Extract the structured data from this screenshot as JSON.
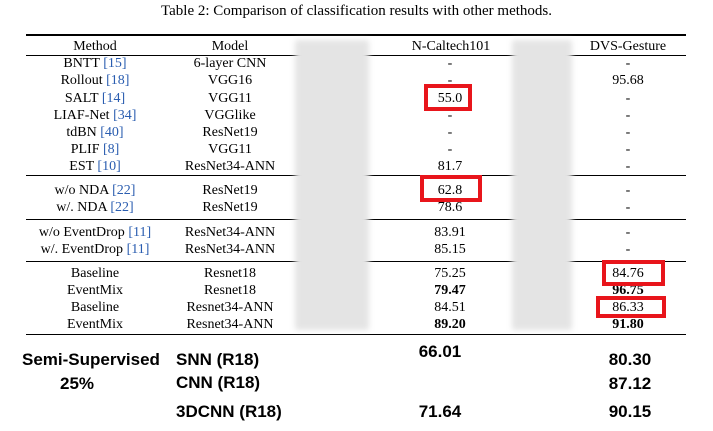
{
  "caption": "Table 2: Comparison of classification results with other methods.",
  "headers": {
    "method": "Method",
    "model": "Model",
    "ncaltech": "N-Caltech101",
    "dvs": "DVS-Gesture"
  },
  "rows": [
    {
      "method": "BNTT ",
      "cite": "[15]",
      "model": "6-layer CNN",
      "nc": "-",
      "dvs": "-"
    },
    {
      "method": "Rollout ",
      "cite": "[18]",
      "model": "VGG16",
      "nc": "-",
      "dvs": "95.68"
    },
    {
      "method": "SALT ",
      "cite": "[14]",
      "model": "VGG11",
      "nc": "55.0",
      "dvs": "-"
    },
    {
      "method": "LIAF-Net ",
      "cite": "[34]",
      "model": "VGGlike",
      "nc": "-",
      "dvs": "-"
    },
    {
      "method": "tdBN ",
      "cite": "[40]",
      "model": "ResNet19",
      "nc": "-",
      "dvs": "-"
    },
    {
      "method": "PLIF ",
      "cite": "[8]",
      "model": "VGG11",
      "nc": "-",
      "dvs": "-"
    },
    {
      "method": "EST ",
      "cite": "[10]",
      "model": "ResNet34-ANN",
      "nc": "81.7",
      "dvs": "-"
    },
    {
      "method": "w/o NDA ",
      "cite": "[22]",
      "model": "ResNet19",
      "nc": "62.8",
      "dvs": "-"
    },
    {
      "method": "w/. NDA ",
      "cite": "[22]",
      "model": "ResNet19",
      "nc": "78.6",
      "dvs": "-"
    },
    {
      "method": "w/o EventDrop ",
      "cite": "[11]",
      "model": "ResNet34-ANN",
      "nc": "83.91",
      "dvs": "-"
    },
    {
      "method": "w/. EventDrop ",
      "cite": "[11]",
      "model": "ResNet34-ANN",
      "nc": "85.15",
      "dvs": "-"
    },
    {
      "method": "Baseline",
      "cite": "",
      "model": "Resnet18",
      "nc": "75.25",
      "dvs": "84.76"
    },
    {
      "method": "EventMix",
      "cite": "",
      "model": "Resnet18",
      "nc": "79.47",
      "dvs": "96.75"
    },
    {
      "method": "Baseline",
      "cite": "",
      "model": "Resnet34-ANN",
      "nc": "84.51",
      "dvs": "86.33"
    },
    {
      "method": "EventMix",
      "cite": "",
      "model": "Resnet34-ANN",
      "nc": "89.20",
      "dvs": "91.80"
    }
  ],
  "semi": {
    "label_line1": "Semi-Supervised",
    "label_line2": "25%",
    "rows": [
      {
        "model": "SNN (R18)",
        "nc": "66.01",
        "dvs": "80.30"
      },
      {
        "model": "CNN (R18)",
        "nc": "",
        "dvs": "87.12"
      },
      {
        "model": "3DCNN (R18)",
        "nc": "71.64",
        "dvs": "90.15"
      }
    ]
  },
  "colors": {
    "highlight_box": "#e8151b",
    "citation": "#2a5db0"
  }
}
